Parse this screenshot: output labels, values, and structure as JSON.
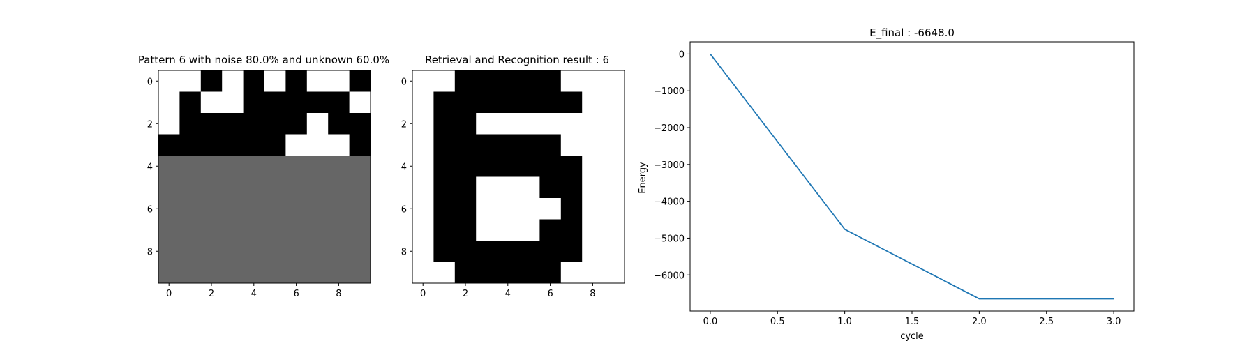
{
  "chart_data": [
    {
      "type": "heatmap",
      "title": "Pattern 6 with noise 80.0% and unknown 60.0%",
      "legend": {
        "0": "white",
        "1": "black",
        "-1": "gray (unknown)"
      },
      "x_ticks": [
        "0",
        "2",
        "4",
        "6",
        "8"
      ],
      "y_ticks": [
        "0",
        "2",
        "4",
        "6",
        "8"
      ],
      "grid": false,
      "matrix": [
        [
          0,
          0,
          1,
          0,
          1,
          0,
          1,
          0,
          0,
          1
        ],
        [
          0,
          1,
          0,
          0,
          1,
          1,
          1,
          1,
          1,
          0
        ],
        [
          0,
          1,
          1,
          1,
          1,
          1,
          1,
          0,
          1,
          1
        ],
        [
          1,
          1,
          1,
          1,
          1,
          1,
          0,
          0,
          0,
          1
        ],
        [
          -1,
          -1,
          -1,
          -1,
          -1,
          -1,
          -1,
          -1,
          -1,
          -1
        ],
        [
          -1,
          -1,
          -1,
          -1,
          -1,
          -1,
          -1,
          -1,
          -1,
          -1
        ],
        [
          -1,
          -1,
          -1,
          -1,
          -1,
          -1,
          -1,
          -1,
          -1,
          -1
        ],
        [
          -1,
          -1,
          -1,
          -1,
          -1,
          -1,
          -1,
          -1,
          -1,
          -1
        ],
        [
          -1,
          -1,
          -1,
          -1,
          -1,
          -1,
          -1,
          -1,
          -1,
          -1
        ],
        [
          -1,
          -1,
          -1,
          -1,
          -1,
          -1,
          -1,
          -1,
          -1,
          -1
        ]
      ]
    },
    {
      "type": "heatmap",
      "title": "Retrieval and Recognition result : 6",
      "legend": {
        "0": "white",
        "1": "black"
      },
      "x_ticks": [
        "0",
        "2",
        "4",
        "6",
        "8"
      ],
      "y_ticks": [
        "0",
        "2",
        "4",
        "6",
        "8"
      ],
      "grid": false,
      "matrix": [
        [
          0,
          0,
          1,
          1,
          1,
          1,
          1,
          0,
          0,
          0
        ],
        [
          0,
          1,
          1,
          1,
          1,
          1,
          1,
          1,
          0,
          0
        ],
        [
          0,
          1,
          1,
          0,
          0,
          0,
          0,
          0,
          0,
          0
        ],
        [
          0,
          1,
          1,
          1,
          1,
          1,
          1,
          0,
          0,
          0
        ],
        [
          0,
          1,
          1,
          1,
          1,
          1,
          1,
          1,
          0,
          0
        ],
        [
          0,
          1,
          1,
          0,
          0,
          0,
          1,
          1,
          0,
          0
        ],
        [
          0,
          1,
          1,
          0,
          0,
          0,
          0,
          1,
          0,
          0
        ],
        [
          0,
          1,
          1,
          0,
          0,
          0,
          1,
          1,
          0,
          0
        ],
        [
          0,
          1,
          1,
          1,
          1,
          1,
          1,
          1,
          0,
          0
        ],
        [
          0,
          0,
          1,
          1,
          1,
          1,
          1,
          0,
          0,
          0
        ]
      ]
    },
    {
      "type": "line",
      "title": "E_final : -6648.0",
      "xlabel": "cycle",
      "ylabel": "Energy",
      "x": [
        0,
        1,
        2,
        3
      ],
      "y": [
        0,
        -4760,
        -6648,
        -6648
      ],
      "xlim": [
        -0.15,
        3.15
      ],
      "ylim": [
        -6980,
        330
      ],
      "x_ticks": [
        "0.0",
        "0.5",
        "1.0",
        "1.5",
        "2.0",
        "2.5",
        "3.0"
      ],
      "y_ticks": [
        "0",
        "−1000",
        "−2000",
        "−3000",
        "−4000",
        "−5000",
        "−6000"
      ],
      "line_color": "#1f77b4",
      "grid": false
    }
  ]
}
